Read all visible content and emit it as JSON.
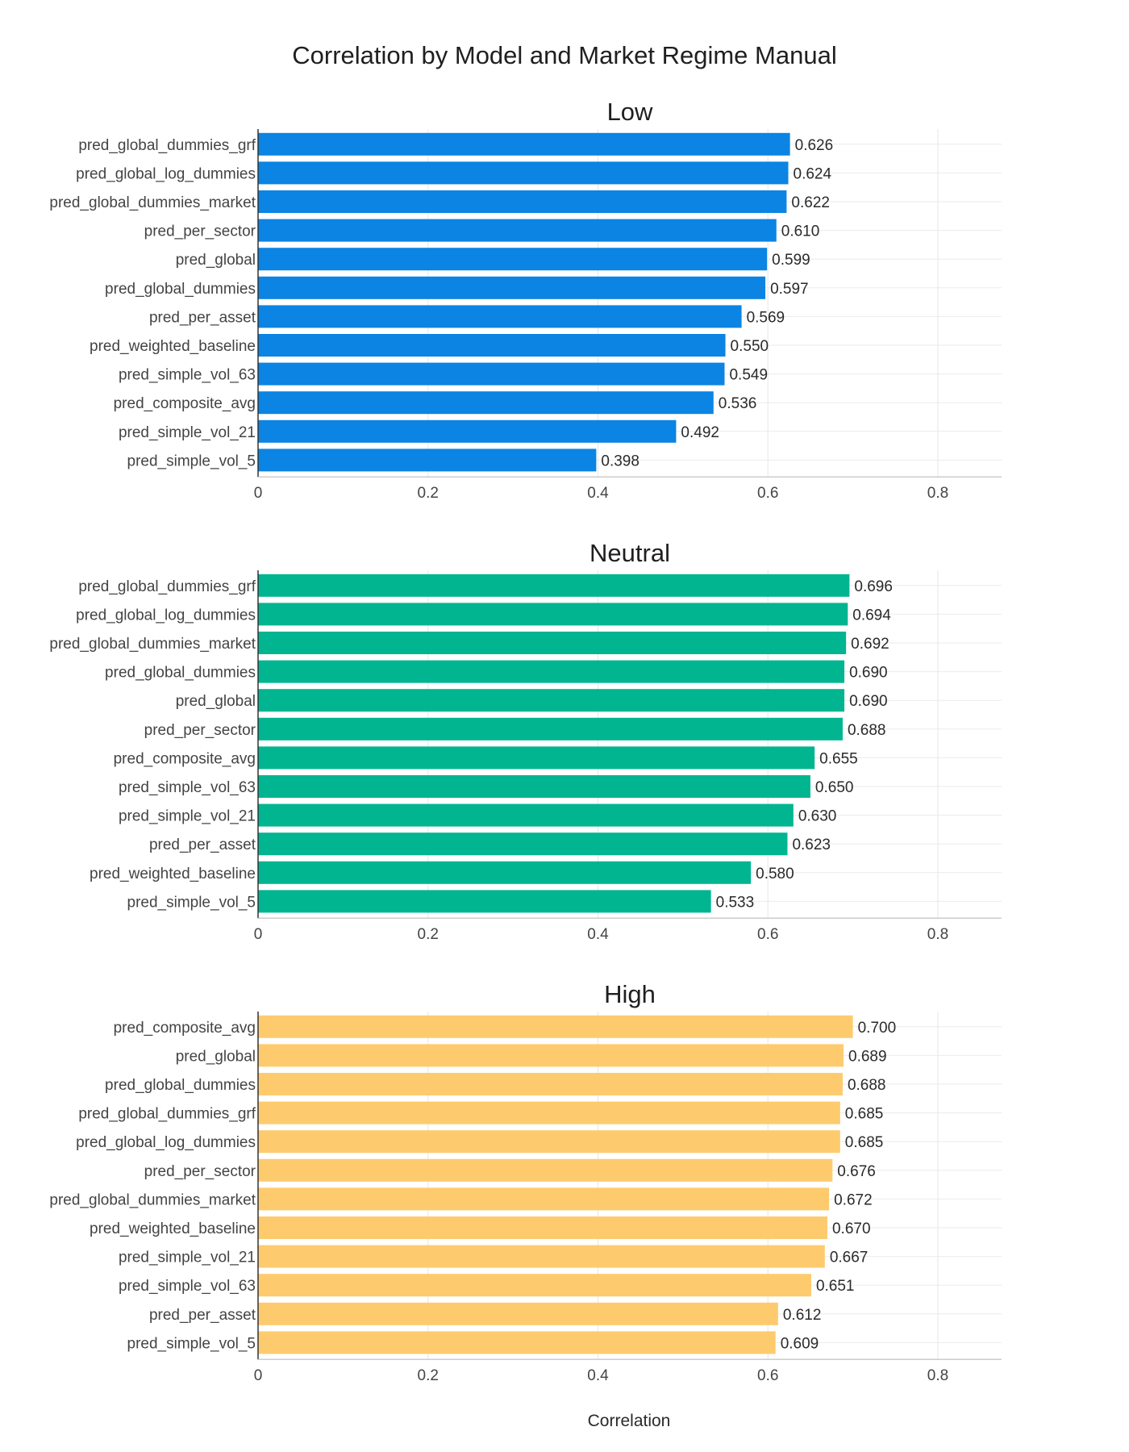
{
  "chart_data": {
    "type": "bar",
    "orientation": "horizontal",
    "title": "Correlation by Model and Market Regime Manual",
    "xlabel": "Correlation",
    "xlim": [
      0,
      0.875
    ],
    "xticks": [
      0,
      0.2,
      0.4,
      0.6,
      0.8
    ],
    "xtick_labels": [
      "0",
      "0.2",
      "0.4",
      "0.6",
      "0.8"
    ],
    "grid": true,
    "panels": [
      {
        "title": "Low",
        "color": "#0b84e3",
        "categories": [
          "pred_global_dummies_grf",
          "pred_global_log_dummies",
          "pred_global_dummies_market",
          "pred_per_sector",
          "pred_global",
          "pred_global_dummies",
          "pred_per_asset",
          "pred_weighted_baseline",
          "pred_simple_vol_63",
          "pred_composite_avg",
          "pred_simple_vol_21",
          "pred_simple_vol_5"
        ],
        "values": [
          0.626,
          0.624,
          0.622,
          0.61,
          0.599,
          0.597,
          0.569,
          0.55,
          0.549,
          0.536,
          0.492,
          0.398
        ],
        "labels": [
          "0.626",
          "0.624",
          "0.622",
          "0.610",
          "0.599",
          "0.597",
          "0.569",
          "0.550",
          "0.549",
          "0.536",
          "0.492",
          "0.398"
        ]
      },
      {
        "title": "Neutral",
        "color": "#00b590",
        "categories": [
          "pred_global_dummies_grf",
          "pred_global_log_dummies",
          "pred_global_dummies_market",
          "pred_global_dummies",
          "pred_global",
          "pred_per_sector",
          "pred_composite_avg",
          "pred_simple_vol_63",
          "pred_simple_vol_21",
          "pred_per_asset",
          "pred_weighted_baseline",
          "pred_simple_vol_5"
        ],
        "values": [
          0.696,
          0.694,
          0.692,
          0.69,
          0.69,
          0.688,
          0.655,
          0.65,
          0.63,
          0.623,
          0.58,
          0.533
        ],
        "labels": [
          "0.696",
          "0.694",
          "0.692",
          "0.690",
          "0.690",
          "0.688",
          "0.655",
          "0.650",
          "0.630",
          "0.623",
          "0.580",
          "0.533"
        ]
      },
      {
        "title": "High",
        "color": "#fdcb6e",
        "categories": [
          "pred_composite_avg",
          "pred_global",
          "pred_global_dummies",
          "pred_global_dummies_grf",
          "pred_global_log_dummies",
          "pred_per_sector",
          "pred_global_dummies_market",
          "pred_weighted_baseline",
          "pred_simple_vol_21",
          "pred_simple_vol_63",
          "pred_per_asset",
          "pred_simple_vol_5"
        ],
        "values": [
          0.7,
          0.689,
          0.688,
          0.685,
          0.685,
          0.676,
          0.672,
          0.67,
          0.667,
          0.651,
          0.612,
          0.609
        ],
        "labels": [
          "0.700",
          "0.689",
          "0.688",
          "0.685",
          "0.685",
          "0.676",
          "0.672",
          "0.670",
          "0.667",
          "0.651",
          "0.612",
          "0.609"
        ]
      }
    ]
  }
}
